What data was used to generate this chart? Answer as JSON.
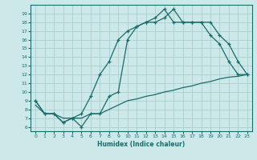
{
  "xlabel": "Humidex (Indice chaleur)",
  "xlim": [
    -0.5,
    23.5
  ],
  "ylim": [
    5.5,
    20
  ],
  "yticks": [
    6,
    7,
    8,
    9,
    10,
    11,
    12,
    13,
    14,
    15,
    16,
    17,
    18,
    19
  ],
  "xticks": [
    0,
    1,
    2,
    3,
    4,
    5,
    6,
    7,
    8,
    9,
    10,
    11,
    12,
    13,
    14,
    15,
    16,
    17,
    18,
    19,
    20,
    21,
    22,
    23
  ],
  "bg_color": "#cce8e8",
  "grid_color": "#aacfcf",
  "line_color": "#1a6b6b",
  "line1_x": [
    0,
    1,
    2,
    3,
    4,
    5,
    6,
    7,
    8,
    9,
    10,
    11,
    12,
    13,
    14,
    15,
    16,
    17,
    18,
    19,
    20,
    21,
    22,
    23
  ],
  "line1_y": [
    9.0,
    7.5,
    7.5,
    6.5,
    7.0,
    6.0,
    7.5,
    7.5,
    9.5,
    10.0,
    16.0,
    17.5,
    18.0,
    18.0,
    18.5,
    19.5,
    18.0,
    18.0,
    18.0,
    18.0,
    16.5,
    15.5,
    13.5,
    12.0
  ],
  "line2_x": [
    0,
    1,
    2,
    3,
    4,
    5,
    6,
    7,
    8,
    9,
    10,
    11,
    12,
    13,
    14,
    15,
    16,
    17,
    18,
    19,
    20,
    21,
    22,
    23
  ],
  "line2_y": [
    9.0,
    7.5,
    7.5,
    6.5,
    7.0,
    7.5,
    9.5,
    12.0,
    13.5,
    16.0,
    17.0,
    17.5,
    18.0,
    18.5,
    19.5,
    18.0,
    18.0,
    18.0,
    18.0,
    16.5,
    15.5,
    13.5,
    12.0,
    12.0
  ],
  "line3_x": [
    0,
    1,
    2,
    3,
    4,
    5,
    6,
    7,
    8,
    9,
    10,
    11,
    12,
    13,
    14,
    15,
    16,
    17,
    18,
    19,
    20,
    21,
    22,
    23
  ],
  "line3_y": [
    8.5,
    7.5,
    7.5,
    7.0,
    7.0,
    7.0,
    7.5,
    7.5,
    8.0,
    8.5,
    9.0,
    9.2,
    9.5,
    9.7,
    10.0,
    10.2,
    10.5,
    10.7,
    11.0,
    11.2,
    11.5,
    11.7,
    11.8,
    12.0
  ]
}
